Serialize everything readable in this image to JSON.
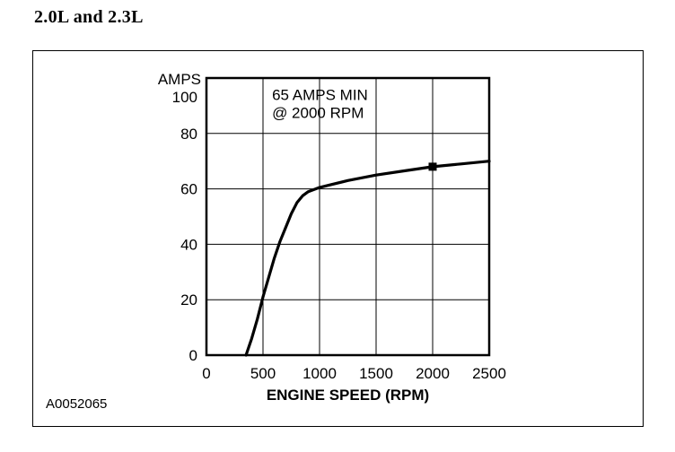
{
  "heading": "2.0L and 2.3L",
  "figure_code": "A0052065",
  "chart_data": {
    "type": "line",
    "title": "",
    "xlabel": "ENGINE SPEED (RPM)",
    "ylabel": "AMPS",
    "xlim": [
      0,
      2500
    ],
    "ylim": [
      0,
      100
    ],
    "xticks": [
      0,
      500,
      1000,
      1500,
      2000,
      2500
    ],
    "yticks": [
      0,
      20,
      40,
      60,
      80,
      100
    ],
    "grid": true,
    "line_color": "#000000",
    "annotation": {
      "lines": [
        "65 AMPS MIN",
        "@ 2000 RPM"
      ],
      "x": 580,
      "y": 92
    },
    "series": [
      {
        "name": "alternator-output",
        "points": [
          [
            350,
            0
          ],
          [
            400,
            6
          ],
          [
            450,
            13
          ],
          [
            500,
            21
          ],
          [
            550,
            28
          ],
          [
            600,
            35
          ],
          [
            650,
            41
          ],
          [
            700,
            46
          ],
          [
            750,
            51
          ],
          [
            800,
            55
          ],
          [
            850,
            57.5
          ],
          [
            900,
            59
          ],
          [
            1000,
            60.5
          ],
          [
            1100,
            61.5
          ],
          [
            1250,
            63
          ],
          [
            1500,
            65
          ],
          [
            1750,
            66.5
          ],
          [
            2000,
            68
          ],
          [
            2250,
            69
          ],
          [
            2500,
            70
          ]
        ]
      }
    ],
    "marker": {
      "x": 2000,
      "y": 68,
      "shape": "square",
      "color": "#000000"
    }
  }
}
